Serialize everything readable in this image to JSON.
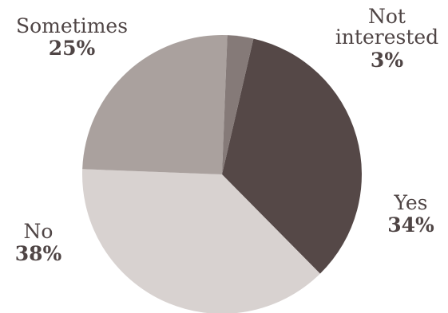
{
  "chart_data": {
    "type": "pie",
    "slices": [
      {
        "label": "Yes",
        "value": 34,
        "value_label": "34%",
        "color": "#554847"
      },
      {
        "label": "No",
        "value": 38,
        "value_label": "38%",
        "color": "#d8d2d0"
      },
      {
        "label": "Sometimes",
        "value": 25,
        "value_label": "25%",
        "color": "#aaa19e"
      },
      {
        "label": "Not interested",
        "value": 3,
        "value_label": "3%",
        "color": "#857a78"
      }
    ],
    "title": "",
    "legend": "none"
  }
}
